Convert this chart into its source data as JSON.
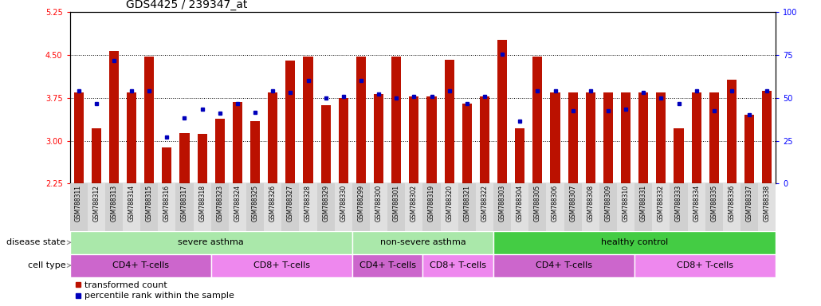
{
  "title": "GDS4425 / 239347_at",
  "samples": [
    "GSM788311",
    "GSM788312",
    "GSM788313",
    "GSM788314",
    "GSM788315",
    "GSM788316",
    "GSM788317",
    "GSM788318",
    "GSM788323",
    "GSM788324",
    "GSM788325",
    "GSM788326",
    "GSM788327",
    "GSM788328",
    "GSM788329",
    "GSM788330",
    "GSM788299",
    "GSM788300",
    "GSM788301",
    "GSM788302",
    "GSM788319",
    "GSM788320",
    "GSM788321",
    "GSM788322",
    "GSM788303",
    "GSM788304",
    "GSM788305",
    "GSM788306",
    "GSM788307",
    "GSM788308",
    "GSM788309",
    "GSM788310",
    "GSM788331",
    "GSM788332",
    "GSM788333",
    "GSM788334",
    "GSM788335",
    "GSM788336",
    "GSM788337",
    "GSM788338"
  ],
  "red_values": [
    3.85,
    3.22,
    4.57,
    3.85,
    4.47,
    2.88,
    3.13,
    3.12,
    3.38,
    3.68,
    3.35,
    3.85,
    4.4,
    4.47,
    3.62,
    3.75,
    4.47,
    3.82,
    4.47,
    3.77,
    3.78,
    4.42,
    3.65,
    3.78,
    4.77,
    3.22,
    4.47,
    3.85,
    3.85,
    3.85,
    3.85,
    3.85,
    3.85,
    3.85,
    3.22,
    3.85,
    3.85,
    4.07,
    3.45,
    3.87
  ],
  "blue_values": [
    3.88,
    3.65,
    4.4,
    3.88,
    3.88,
    3.07,
    3.4,
    3.55,
    3.48,
    3.65,
    3.5,
    3.88,
    3.85,
    4.05,
    3.75,
    3.78,
    4.05,
    3.82,
    3.75,
    3.77,
    3.78,
    3.88,
    3.65,
    3.78,
    4.52,
    3.35,
    3.88,
    3.88,
    3.52,
    3.88,
    3.52,
    3.55,
    3.85,
    3.75,
    3.65,
    3.88,
    3.52,
    3.88,
    3.45,
    3.87
  ],
  "ylim_left": [
    2.25,
    5.25
  ],
  "ylim_right": [
    0,
    100
  ],
  "yticks_left": [
    2.25,
    3.0,
    3.75,
    4.5,
    5.25
  ],
  "yticks_right": [
    0,
    25,
    50,
    75,
    100
  ],
  "hlines": [
    3.0,
    3.75,
    4.5
  ],
  "disease_state_groups": [
    {
      "label": "severe asthma",
      "start": 0,
      "end": 16,
      "color": "#aae8aa"
    },
    {
      "label": "non-severe asthma",
      "start": 16,
      "end": 24,
      "color": "#aae8aa"
    },
    {
      "label": "healthy control",
      "start": 24,
      "end": 40,
      "color": "#44cc44"
    }
  ],
  "cell_type_groups": [
    {
      "label": "CD4+ T-cells",
      "start": 0,
      "end": 8,
      "color": "#cc66cc"
    },
    {
      "label": "CD8+ T-cells",
      "start": 8,
      "end": 16,
      "color": "#ee88ee"
    },
    {
      "label": "CD4+ T-cells",
      "start": 16,
      "end": 20,
      "color": "#cc66cc"
    },
    {
      "label": "CD8+ T-cells",
      "start": 20,
      "end": 24,
      "color": "#ee88ee"
    },
    {
      "label": "CD4+ T-cells",
      "start": 24,
      "end": 32,
      "color": "#cc66cc"
    },
    {
      "label": "CD8+ T-cells",
      "start": 32,
      "end": 40,
      "color": "#ee88ee"
    }
  ],
  "bar_color": "#bb1100",
  "marker_color": "#0000bb",
  "bar_bottom": 2.25,
  "bar_width": 0.55,
  "title_fontsize": 10,
  "tick_fontsize": 7,
  "xtick_fontsize": 5.5,
  "label_fontsize": 8,
  "legend_fontsize": 8,
  "group_label_fontsize": 8,
  "disease_label": "disease state",
  "celltype_label": "cell type"
}
